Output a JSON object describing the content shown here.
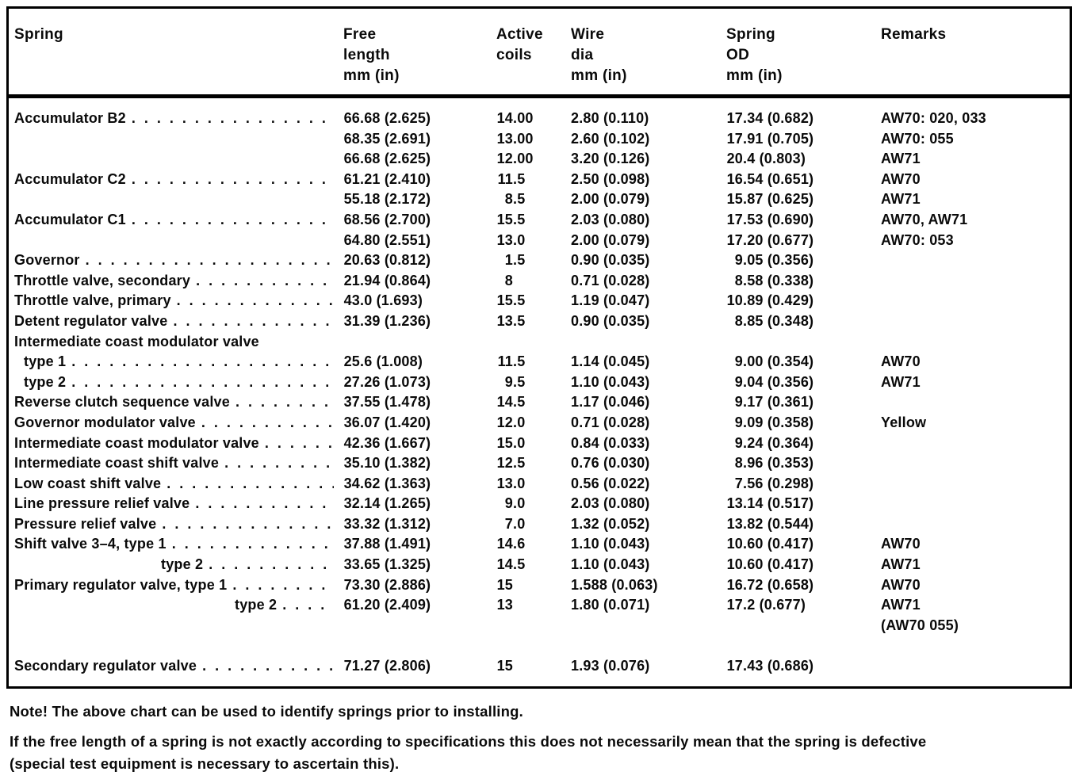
{
  "table": {
    "columns": [
      {
        "key": "spring",
        "lines": [
          "Spring"
        ]
      },
      {
        "key": "free",
        "lines": [
          "Free",
          "length",
          "mm (in)"
        ]
      },
      {
        "key": "coils",
        "lines": [
          "Active",
          "coils"
        ]
      },
      {
        "key": "wire",
        "lines": [
          "Wire",
          "dia",
          "mm (in)"
        ]
      },
      {
        "key": "od",
        "lines": [
          "Spring",
          "OD",
          "mm (in)"
        ]
      },
      {
        "key": "remarks",
        "lines": [
          "Remarks"
        ]
      }
    ],
    "rows": [
      {
        "name": "Accumulator B2",
        "leader": true,
        "free": "66.68 (2.625)",
        "coils": "14.00",
        "wire": "2.80 (0.110)",
        "od": "17.34 (0.682)",
        "remarks": "AW70: 020, 033"
      },
      {
        "name": "",
        "free": "68.35 (2.691)",
        "coils": "13.00",
        "wire": "2.60 (0.102)",
        "od": "17.91 (0.705)",
        "remarks": "AW70: 055"
      },
      {
        "name": "",
        "free": "66.68 (2.625)",
        "coils": "12.00",
        "wire": "3.20 (0.126)",
        "od": "20.4 (0.803)",
        "remarks": "AW71"
      },
      {
        "name": "Accumulator C2",
        "leader": true,
        "free": "61.21 (2.410)",
        "coils": "11.5",
        "wire": "2.50 (0.098)",
        "od": "16.54 (0.651)",
        "remarks": "AW70"
      },
      {
        "name": "",
        "free": "55.18 (2.172)",
        "coils": "8.5",
        "wire": "2.00 (0.079)",
        "od": "15.87 (0.625)",
        "remarks": "AW71"
      },
      {
        "name": "Accumulator C1",
        "leader": true,
        "free": "68.56 (2.700)",
        "coils": "15.5",
        "wire": "2.03 (0.080)",
        "od": "17.53 (0.690)",
        "remarks": "AW70, AW71"
      },
      {
        "name": "",
        "free": "64.80 (2.551)",
        "coils": "13.0",
        "wire": "2.00 (0.079)",
        "od": "17.20 (0.677)",
        "remarks": "AW70: 053"
      },
      {
        "name": "Governor",
        "leader": true,
        "free": "20.63 (0.812)",
        "coils": "1.5",
        "wire": "0.90 (0.035)",
        "od": "9.05 (0.356)",
        "remarks": ""
      },
      {
        "name": "Throttle valve, secondary",
        "leader": true,
        "free": "21.94 (0.864)",
        "coils": "8",
        "wire": "0.71 (0.028)",
        "od": "8.58 (0.338)",
        "remarks": ""
      },
      {
        "name": "Throttle valve, primary",
        "leader": true,
        "free": "43.0 (1.693)",
        "coils": "15.5",
        "wire": "1.19 (0.047)",
        "od": "10.89 (0.429)",
        "remarks": ""
      },
      {
        "name": "Detent regulator valve",
        "leader": true,
        "free": "31.39 (1.236)",
        "coils": "13.5",
        "wire": "0.90 (0.035)",
        "od": "8.85 (0.348)",
        "remarks": ""
      },
      {
        "name": "Intermediate coast modulator valve",
        "leader": false
      },
      {
        "name": "type 1",
        "indent": 1,
        "leader": true,
        "free": "25.6 (1.008)",
        "coils": "11.5",
        "wire": "1.14 (0.045)",
        "od": "9.00 (0.354)",
        "remarks": "AW70"
      },
      {
        "name": "type 2",
        "indent": 1,
        "leader": true,
        "free": "27.26 (1.073)",
        "coils": "9.5",
        "wire": "1.10 (0.043)",
        "od": "9.04 (0.356)",
        "remarks": "AW71"
      },
      {
        "name": "Reverse clutch sequence valve",
        "leader": true,
        "free": "37.55 (1.478)",
        "coils": "14.5",
        "wire": "1.17 (0.046)",
        "od": "9.17 (0.361)",
        "remarks": ""
      },
      {
        "name": "Governor modulator valve",
        "leader": true,
        "free": "36.07 (1.420)",
        "coils": "12.0",
        "wire": "0.71 (0.028)",
        "od": "9.09 (0.358)",
        "remarks": "Yellow"
      },
      {
        "name": "Intermediate coast modulator valve",
        "leader": true,
        "free": "42.36 (1.667)",
        "coils": "15.0",
        "wire": "0.84 (0.033)",
        "od": "9.24 (0.364)",
        "remarks": ""
      },
      {
        "name": "Intermediate coast shift valve",
        "leader": true,
        "free": "35.10 (1.382)",
        "coils": "12.5",
        "wire": "0.76 (0.030)",
        "od": "8.96 (0.353)",
        "remarks": ""
      },
      {
        "name": "Low coast shift valve",
        "leader": true,
        "free": "34.62 (1.363)",
        "coils": "13.0",
        "wire": "0.56 (0.022)",
        "od": "7.56 (0.298)",
        "remarks": ""
      },
      {
        "name": "Line pressure relief valve",
        "leader": true,
        "free": "32.14 (1.265)",
        "coils": "9.0",
        "wire": "2.03 (0.080)",
        "od": "13.14 (0.517)",
        "remarks": ""
      },
      {
        "name": "Pressure relief valve",
        "leader": true,
        "free": "33.32 (1.312)",
        "coils": "7.0",
        "wire": "1.32 (0.052)",
        "od": "13.82 (0.544)",
        "remarks": ""
      },
      {
        "name": "Shift valve 3–4, type 1",
        "leader": true,
        "free": "37.88 (1.491)",
        "coils": "14.6",
        "wire": "1.10 (0.043)",
        "od": "10.60 (0.417)",
        "remarks": "AW70"
      },
      {
        "name": "type 2",
        "indent": 2,
        "leader": true,
        "free": "33.65 (1.325)",
        "coils": "14.5",
        "wire": "1.10 (0.043)",
        "od": "10.60 (0.417)",
        "remarks": "AW71"
      },
      {
        "name": "Primary regulator valve, type 1",
        "leader": true,
        "free": "73.30 (2.886)",
        "coils": "15",
        "wire": "1.588 (0.063)",
        "od": "16.72 (0.658)",
        "remarks": "AW70"
      },
      {
        "name": "type 2",
        "indent": 3,
        "leader": true,
        "free": "61.20 (2.409)",
        "coils": "13",
        "wire": "1.80 (0.071)",
        "od": "17.2 (0.677)",
        "remarks": "AW71"
      },
      {
        "name": "",
        "remarks": "(AW70 055)"
      },
      {
        "name": "Secondary regulator valve",
        "leader": true,
        "spacer": true,
        "free": "71.27 (2.806)",
        "coils": "15",
        "wire": "1.93 (0.076)",
        "od": "17.43 (0.686)",
        "remarks": ""
      }
    ]
  },
  "notes": [
    {
      "lines": [
        "Note! The above chart can be used to identify springs prior to installing."
      ]
    },
    {
      "lines": [
        "If the free length of a spring is not exactly according to specifications this does not necessarily mean that the spring is defective",
        "(special test equipment is necessary to ascertain this)."
      ]
    }
  ]
}
